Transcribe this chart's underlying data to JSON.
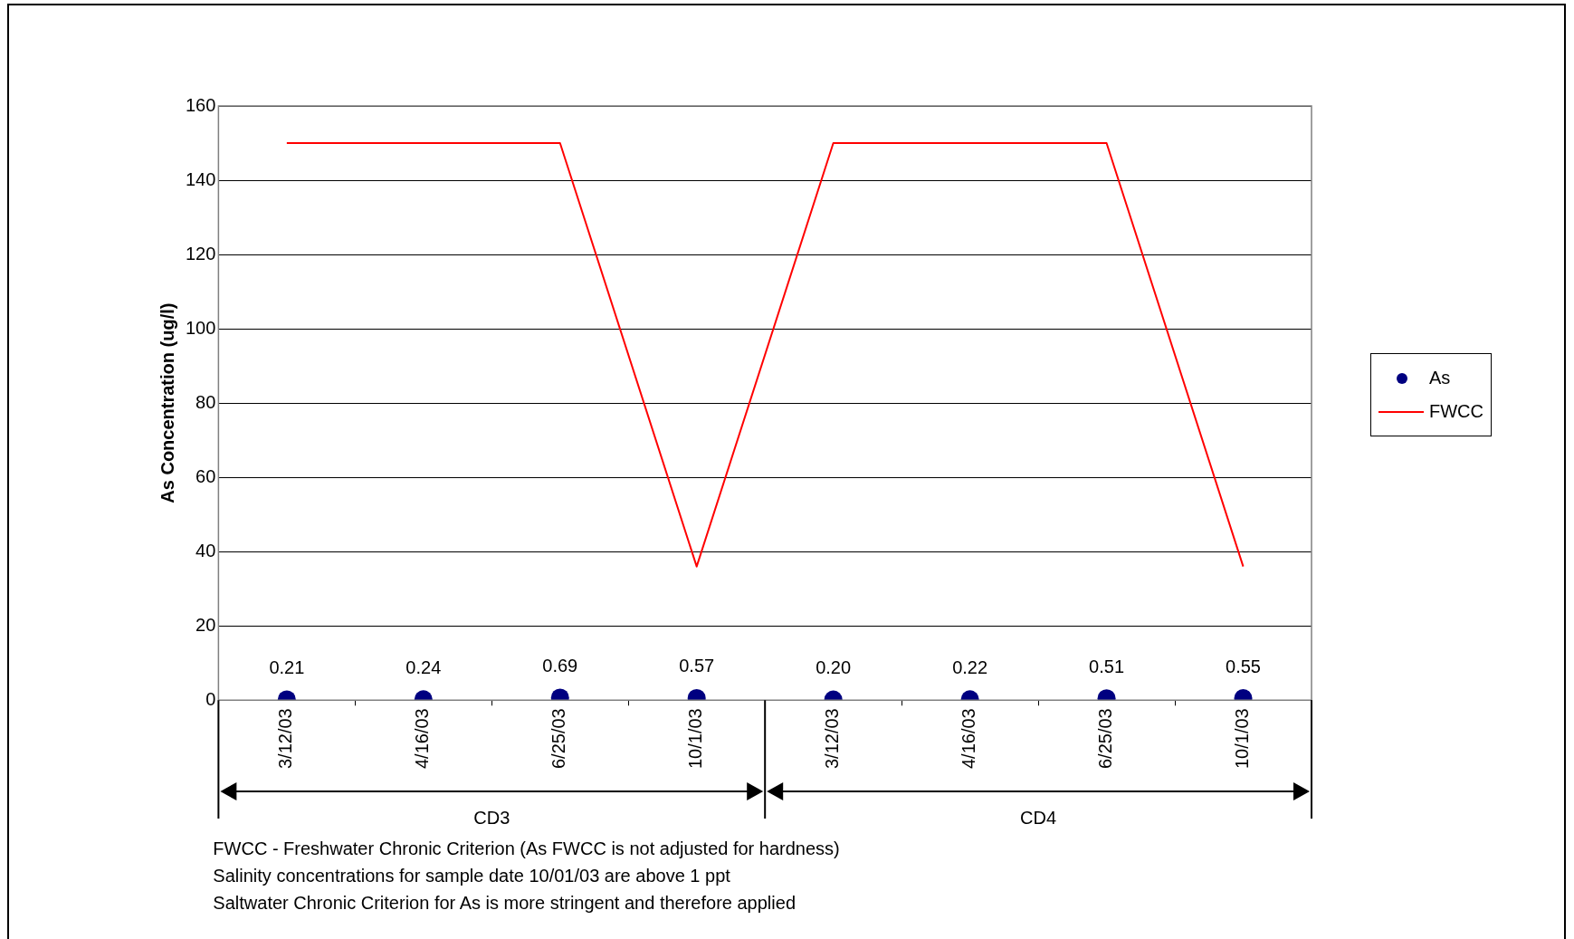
{
  "chart_data": {
    "type": "line",
    "ylabel": "As Concentration (ug/l)",
    "categories": [
      "3/12/03",
      "4/16/03",
      "6/25/03",
      "10/1/03",
      "3/12/03",
      "4/16/03",
      "6/25/03",
      "10/1/03"
    ],
    "series": [
      {
        "name": "As",
        "type": "scatter",
        "marker": "circle",
        "color": "#000080",
        "values": [
          0.21,
          0.24,
          0.69,
          0.57,
          0.2,
          0.22,
          0.51,
          0.55
        ],
        "value_labels": [
          "0.21",
          "0.24",
          "0.69",
          "0.57",
          "0.20",
          "0.22",
          "0.51",
          "0.55"
        ]
      },
      {
        "name": "FWCC",
        "marker": "none",
        "color": "#ff0000",
        "values": [
          150,
          150,
          150,
          36,
          150,
          150,
          150,
          36
        ]
      }
    ],
    "ylim": [
      0,
      160
    ],
    "yticks": [
      0,
      20,
      40,
      60,
      80,
      100,
      120,
      140,
      160
    ],
    "grid": "y",
    "legend": "right",
    "line_style": "solid",
    "annotations": [
      "CD3",
      "CD4",
      "FWCC - Freshwater Chronic Criterion  (As FWCC is not adjusted for hardness)",
      "Salinity concentrations for sample date 10/01/03 are above 1 ppt",
      "Saltwater Chronic Criterion for As is more stringent and therefore applied"
    ]
  }
}
